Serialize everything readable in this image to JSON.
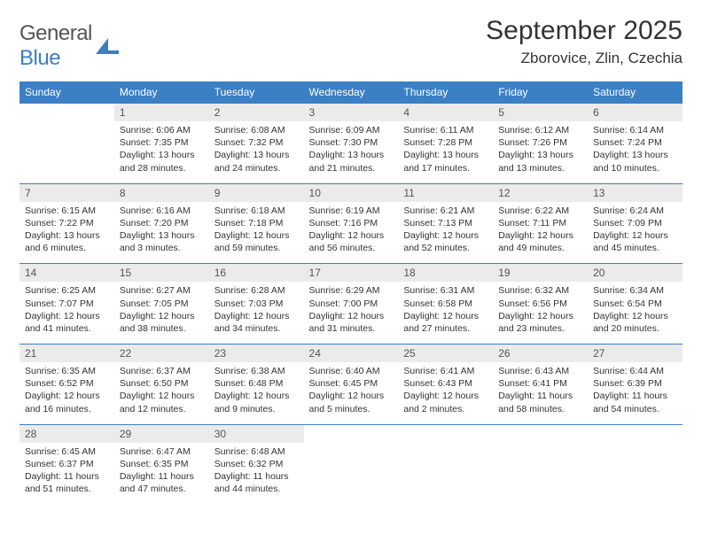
{
  "logo": {
    "general": "General",
    "blue": "Blue"
  },
  "title": "September 2025",
  "location": "Zborovice, Zlin, Czechia",
  "colors": {
    "header_bg": "#3b7fc4",
    "header_text": "#ffffff",
    "daynum_bg": "#ebebeb",
    "daynum_text": "#555555",
    "body_text": "#333333",
    "border": "#3b7fc4",
    "page_bg": "#ffffff"
  },
  "weekdays": [
    "Sunday",
    "Monday",
    "Tuesday",
    "Wednesday",
    "Thursday",
    "Friday",
    "Saturday"
  ],
  "weeks": [
    {
      "nums": [
        "",
        "1",
        "2",
        "3",
        "4",
        "5",
        "6"
      ],
      "cells": [
        null,
        {
          "sunrise": "Sunrise: 6:06 AM",
          "sunset": "Sunset: 7:35 PM",
          "daylight": "Daylight: 13 hours and 28 minutes."
        },
        {
          "sunrise": "Sunrise: 6:08 AM",
          "sunset": "Sunset: 7:32 PM",
          "daylight": "Daylight: 13 hours and 24 minutes."
        },
        {
          "sunrise": "Sunrise: 6:09 AM",
          "sunset": "Sunset: 7:30 PM",
          "daylight": "Daylight: 13 hours and 21 minutes."
        },
        {
          "sunrise": "Sunrise: 6:11 AM",
          "sunset": "Sunset: 7:28 PM",
          "daylight": "Daylight: 13 hours and 17 minutes."
        },
        {
          "sunrise": "Sunrise: 6:12 AM",
          "sunset": "Sunset: 7:26 PM",
          "daylight": "Daylight: 13 hours and 13 minutes."
        },
        {
          "sunrise": "Sunrise: 6:14 AM",
          "sunset": "Sunset: 7:24 PM",
          "daylight": "Daylight: 13 hours and 10 minutes."
        }
      ]
    },
    {
      "nums": [
        "7",
        "8",
        "9",
        "10",
        "11",
        "12",
        "13"
      ],
      "cells": [
        {
          "sunrise": "Sunrise: 6:15 AM",
          "sunset": "Sunset: 7:22 PM",
          "daylight": "Daylight: 13 hours and 6 minutes."
        },
        {
          "sunrise": "Sunrise: 6:16 AM",
          "sunset": "Sunset: 7:20 PM",
          "daylight": "Daylight: 13 hours and 3 minutes."
        },
        {
          "sunrise": "Sunrise: 6:18 AM",
          "sunset": "Sunset: 7:18 PM",
          "daylight": "Daylight: 12 hours and 59 minutes."
        },
        {
          "sunrise": "Sunrise: 6:19 AM",
          "sunset": "Sunset: 7:16 PM",
          "daylight": "Daylight: 12 hours and 56 minutes."
        },
        {
          "sunrise": "Sunrise: 6:21 AM",
          "sunset": "Sunset: 7:13 PM",
          "daylight": "Daylight: 12 hours and 52 minutes."
        },
        {
          "sunrise": "Sunrise: 6:22 AM",
          "sunset": "Sunset: 7:11 PM",
          "daylight": "Daylight: 12 hours and 49 minutes."
        },
        {
          "sunrise": "Sunrise: 6:24 AM",
          "sunset": "Sunset: 7:09 PM",
          "daylight": "Daylight: 12 hours and 45 minutes."
        }
      ]
    },
    {
      "nums": [
        "14",
        "15",
        "16",
        "17",
        "18",
        "19",
        "20"
      ],
      "cells": [
        {
          "sunrise": "Sunrise: 6:25 AM",
          "sunset": "Sunset: 7:07 PM",
          "daylight": "Daylight: 12 hours and 41 minutes."
        },
        {
          "sunrise": "Sunrise: 6:27 AM",
          "sunset": "Sunset: 7:05 PM",
          "daylight": "Daylight: 12 hours and 38 minutes."
        },
        {
          "sunrise": "Sunrise: 6:28 AM",
          "sunset": "Sunset: 7:03 PM",
          "daylight": "Daylight: 12 hours and 34 minutes."
        },
        {
          "sunrise": "Sunrise: 6:29 AM",
          "sunset": "Sunset: 7:00 PM",
          "daylight": "Daylight: 12 hours and 31 minutes."
        },
        {
          "sunrise": "Sunrise: 6:31 AM",
          "sunset": "Sunset: 6:58 PM",
          "daylight": "Daylight: 12 hours and 27 minutes."
        },
        {
          "sunrise": "Sunrise: 6:32 AM",
          "sunset": "Sunset: 6:56 PM",
          "daylight": "Daylight: 12 hours and 23 minutes."
        },
        {
          "sunrise": "Sunrise: 6:34 AM",
          "sunset": "Sunset: 6:54 PM",
          "daylight": "Daylight: 12 hours and 20 minutes."
        }
      ]
    },
    {
      "nums": [
        "21",
        "22",
        "23",
        "24",
        "25",
        "26",
        "27"
      ],
      "cells": [
        {
          "sunrise": "Sunrise: 6:35 AM",
          "sunset": "Sunset: 6:52 PM",
          "daylight": "Daylight: 12 hours and 16 minutes."
        },
        {
          "sunrise": "Sunrise: 6:37 AM",
          "sunset": "Sunset: 6:50 PM",
          "daylight": "Daylight: 12 hours and 12 minutes."
        },
        {
          "sunrise": "Sunrise: 6:38 AM",
          "sunset": "Sunset: 6:48 PM",
          "daylight": "Daylight: 12 hours and 9 minutes."
        },
        {
          "sunrise": "Sunrise: 6:40 AM",
          "sunset": "Sunset: 6:45 PM",
          "daylight": "Daylight: 12 hours and 5 minutes."
        },
        {
          "sunrise": "Sunrise: 6:41 AM",
          "sunset": "Sunset: 6:43 PM",
          "daylight": "Daylight: 12 hours and 2 minutes."
        },
        {
          "sunrise": "Sunrise: 6:43 AM",
          "sunset": "Sunset: 6:41 PM",
          "daylight": "Daylight: 11 hours and 58 minutes."
        },
        {
          "sunrise": "Sunrise: 6:44 AM",
          "sunset": "Sunset: 6:39 PM",
          "daylight": "Daylight: 11 hours and 54 minutes."
        }
      ]
    },
    {
      "nums": [
        "28",
        "29",
        "30",
        "",
        "",
        "",
        ""
      ],
      "cells": [
        {
          "sunrise": "Sunrise: 6:45 AM",
          "sunset": "Sunset: 6:37 PM",
          "daylight": "Daylight: 11 hours and 51 minutes."
        },
        {
          "sunrise": "Sunrise: 6:47 AM",
          "sunset": "Sunset: 6:35 PM",
          "daylight": "Daylight: 11 hours and 47 minutes."
        },
        {
          "sunrise": "Sunrise: 6:48 AM",
          "sunset": "Sunset: 6:32 PM",
          "daylight": "Daylight: 11 hours and 44 minutes."
        },
        null,
        null,
        null,
        null
      ]
    }
  ]
}
